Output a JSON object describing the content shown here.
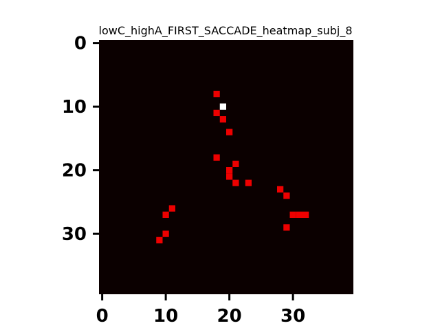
{
  "chart_data": {
    "type": "heatmap",
    "title": "lowC_highA_FIRST_SACCADE_heatmap_subj_8",
    "xlabel": "",
    "ylabel": "",
    "grid_size": [
      40,
      40
    ],
    "xlim": [
      -0.5,
      39.5
    ],
    "ylim": [
      39.5,
      -0.5
    ],
    "x_ticks": [
      0,
      10,
      20,
      30
    ],
    "y_ticks": [
      0,
      10,
      20,
      30
    ],
    "x_tick_labels": [
      "0",
      "10",
      "20",
      "30"
    ],
    "y_tick_labels": [
      "0",
      "10",
      "20",
      "30"
    ],
    "colormap": "hot",
    "colors": {
      "background": "#0b0000",
      "low": "#ee0000",
      "high": "#ffffff"
    },
    "value_range": [
      0,
      2
    ],
    "cells": [
      {
        "x": 18,
        "y": 8,
        "value": 1
      },
      {
        "x": 19,
        "y": 10,
        "value": 2
      },
      {
        "x": 18,
        "y": 11,
        "value": 1
      },
      {
        "x": 19,
        "y": 12,
        "value": 1
      },
      {
        "x": 20,
        "y": 14,
        "value": 1
      },
      {
        "x": 18,
        "y": 18,
        "value": 1
      },
      {
        "x": 21,
        "y": 19,
        "value": 1
      },
      {
        "x": 20,
        "y": 20,
        "value": 1
      },
      {
        "x": 20,
        "y": 21,
        "value": 1
      },
      {
        "x": 21,
        "y": 22,
        "value": 1
      },
      {
        "x": 23,
        "y": 22,
        "value": 1
      },
      {
        "x": 28,
        "y": 23,
        "value": 1
      },
      {
        "x": 29,
        "y": 24,
        "value": 1
      },
      {
        "x": 11,
        "y": 26,
        "value": 1
      },
      {
        "x": 10,
        "y": 27,
        "value": 1
      },
      {
        "x": 30,
        "y": 27,
        "value": 1
      },
      {
        "x": 31,
        "y": 27,
        "value": 1
      },
      {
        "x": 32,
        "y": 27,
        "value": 1
      },
      {
        "x": 29,
        "y": 29,
        "value": 1
      },
      {
        "x": 10,
        "y": 30,
        "value": 1
      },
      {
        "x": 9,
        "y": 31,
        "value": 1
      }
    ]
  }
}
